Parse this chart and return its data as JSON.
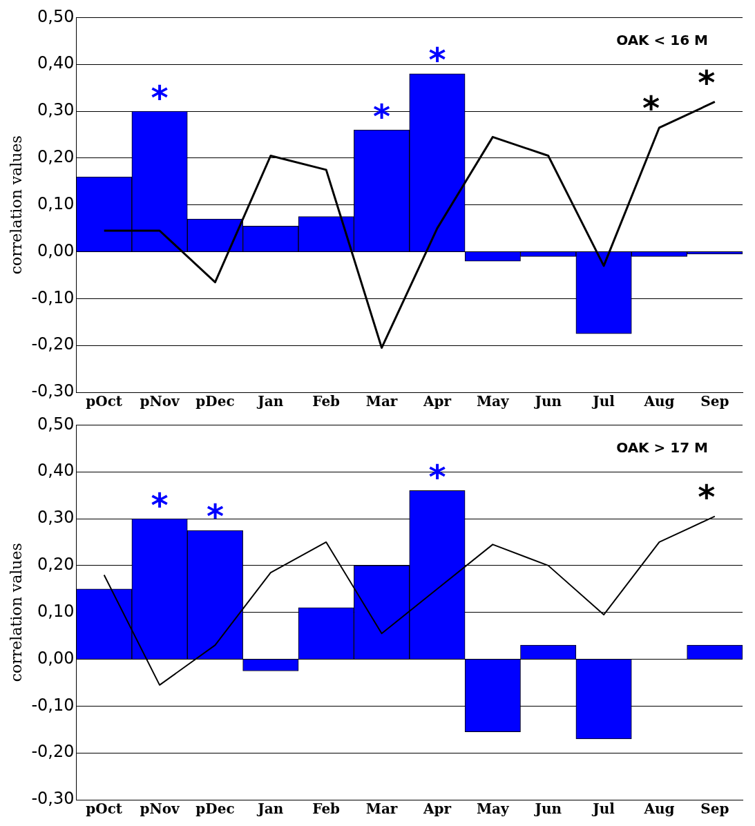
{
  "chart_data": [
    {
      "type": "bar",
      "title": "OAK < 16 M",
      "ylabel": "correlation values",
      "categories": [
        "pOct",
        "pNov",
        "pDec",
        "Jan",
        "Feb",
        "Mar",
        "Apr",
        "May",
        "Jun",
        "Jul",
        "Aug",
        "Sep"
      ],
      "series": [
        {
          "color": "#0000ff",
          "values": [
            0.16,
            0.3,
            0.07,
            0.055,
            0.075,
            0.26,
            0.38,
            -0.02,
            -0.01,
            -0.175,
            -0.01,
            -0.005
          ]
        },
        {
          "type": "line",
          "color": "#000000",
          "values": [
            0.045,
            0.045,
            -0.065,
            0.205,
            0.175,
            -0.205,
            0.05,
            0.245,
            0.205,
            -0.03,
            0.265,
            0.32
          ]
        }
      ],
      "ylim": [
        -0.3,
        0.5
      ],
      "yticks": [
        {
          "value": -0.3,
          "label": "-0,30"
        },
        {
          "value": -0.2,
          "label": "-0,20"
        },
        {
          "value": -0.1,
          "label": "-0,10"
        },
        {
          "value": 0,
          "label": "0,00"
        },
        {
          "value": 0.1,
          "label": "0,10"
        },
        {
          "value": 0.2,
          "label": "0,20"
        },
        {
          "value": 0.3,
          "label": "0,30"
        },
        {
          "value": 0.4,
          "label": "0,40"
        },
        {
          "value": 0.5,
          "label": "0,50"
        }
      ],
      "grid": "y",
      "marker": "none",
      "line_style": "solid",
      "annotations": [
        {
          "text": "*",
          "x": "pNov",
          "y": 0.3
        },
        {
          "text": "*",
          "x": "Mar",
          "y": 0.26
        },
        {
          "text": "*",
          "x": "Apr",
          "y": 0.38
        },
        {
          "text": "*",
          "x": "Aug",
          "y": 0.265
        },
        {
          "text": "*",
          "x": "Sep",
          "y": 0.32
        }
      ]
    },
    {
      "type": "bar",
      "title": "OAK > 17 M",
      "ylabel": "correlation values",
      "categories": [
        "pOct",
        "pNov",
        "pDec",
        "Jan",
        "Feb",
        "Mar",
        "Apr",
        "May",
        "Jun",
        "Jul",
        "Aug",
        "Sep"
      ],
      "series": [
        {
          "color": "#0000ff",
          "values": [
            0.15,
            0.3,
            0.275,
            -0.025,
            0.11,
            0.2,
            0.36,
            -0.155,
            0.03,
            -0.17,
            0,
            0.03
          ]
        },
        {
          "type": "line",
          "color": "#000000",
          "values": [
            0.18,
            -0.055,
            0.03,
            0.185,
            0.25,
            0.055,
            0.15,
            0.245,
            0.2,
            0.095,
            0.25,
            0.305
          ]
        }
      ],
      "ylim": [
        -0.3,
        0.5
      ],
      "yticks": [
        {
          "value": -0.3,
          "label": "-0,30"
        },
        {
          "value": -0.2,
          "label": "-0,20"
        },
        {
          "value": -0.1,
          "label": "-0,10"
        },
        {
          "value": 0,
          "label": "0,00"
        },
        {
          "value": 0.1,
          "label": "0,10"
        },
        {
          "value": 0.2,
          "label": "0,20"
        },
        {
          "value": 0.3,
          "label": "0,30"
        },
        {
          "value": 0.4,
          "label": "0,40"
        },
        {
          "value": 0.5,
          "label": "0,50"
        }
      ],
      "grid": "y",
      "marker": "none",
      "line_style": "solid",
      "annotations": [
        {
          "text": "*",
          "x": "pNov",
          "y": 0.3
        },
        {
          "text": "*",
          "x": "pDec",
          "y": 0.275
        },
        {
          "text": "*",
          "x": "Apr",
          "y": 0.36
        },
        {
          "text": "*",
          "x": "Sep",
          "y": 0.305
        }
      ]
    }
  ]
}
